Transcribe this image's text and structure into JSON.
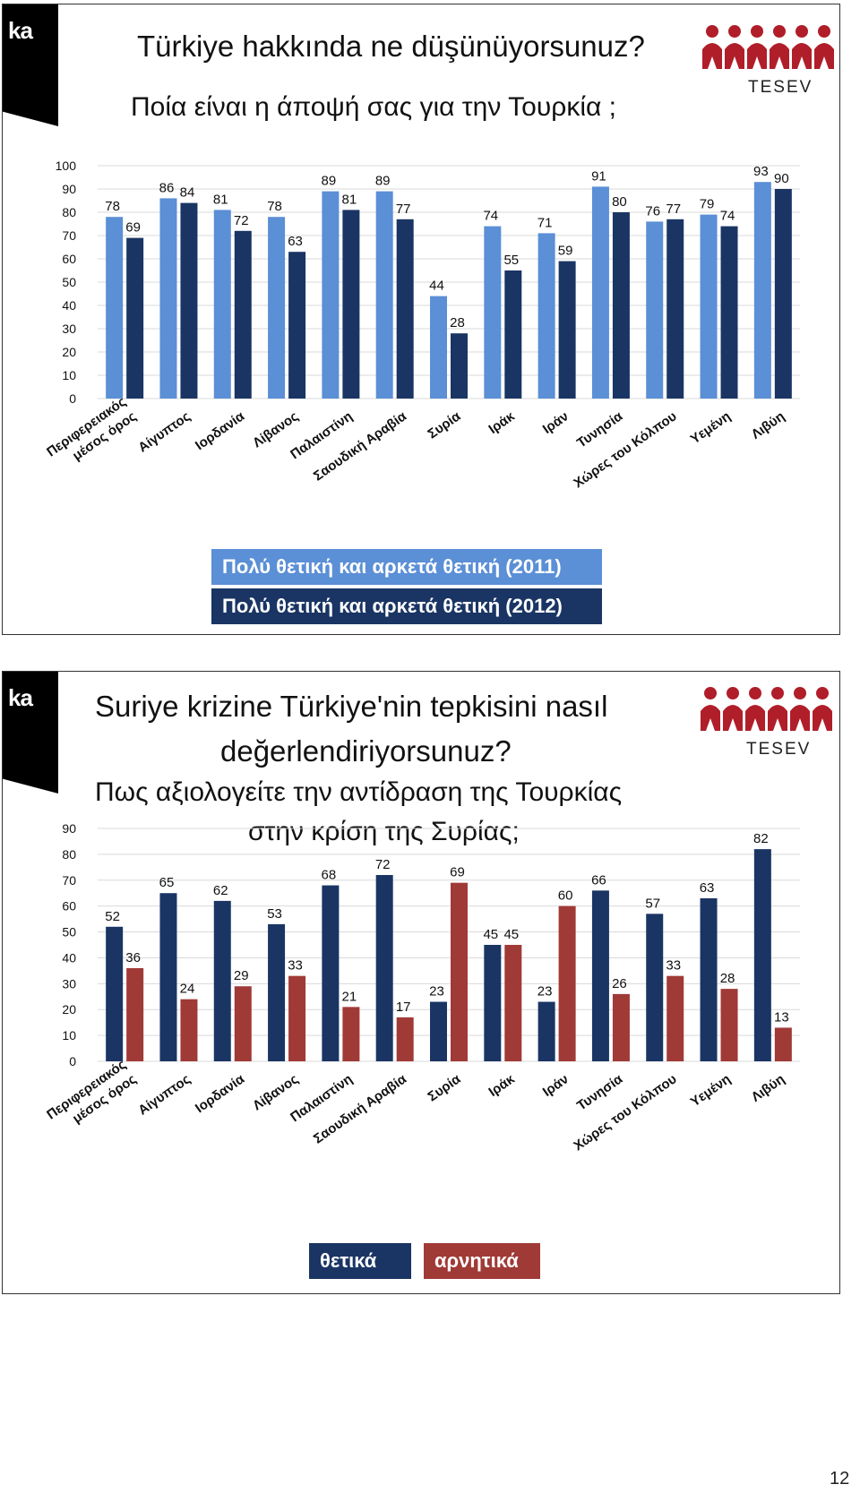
{
  "page_number": "12",
  "logo": {
    "text": "TESEV"
  },
  "tag": "ka",
  "colors": {
    "series_2011": "#5b8fd6",
    "series_2012": "#1a3564",
    "positive": "#1a3564",
    "negative": "#a03a36",
    "logo_red": "#b01e2a"
  },
  "slide1": {
    "title_tr": "Türkiye hakkında ne düşünüyorsunuz?",
    "title_gr": "Ποία είναι η άποψή σας για την Τουρκία ;"
  },
  "slide2": {
    "title_tr_line1": "Suriye krizine Türkiye'nin tepkisini nasıl",
    "title_tr_line2": "değerlendiriyorsunuz?",
    "title_gr_line1": "Πως αξιολογείτε την αντίδραση της Τουρκίας",
    "title_gr_line2": "στην κρίση της Συρίας;"
  },
  "chart_data": [
    {
      "type": "bar",
      "categories": [
        "Περιφερειακός μέσος όρος",
        "Αίγυπτος",
        "Ιορδανία",
        "Λίβανος",
        "Παλαιστίνη",
        "Σαουδική Αραβία",
        "Συρία",
        "Ιράκ",
        "Ιράν",
        "Τυνησία",
        "Χώρες του Κόλπου",
        "Υεμένη",
        "Λιβύη"
      ],
      "category_lines": [
        [
          "Περιφερειακός",
          "μέσος όρος"
        ],
        [
          "Αίγυπτος"
        ],
        [
          "Ιορδανία"
        ],
        [
          "Λίβανος"
        ],
        [
          "Παλαιστίνη"
        ],
        [
          "Σαουδική Αραβία"
        ],
        [
          "Συρία"
        ],
        [
          "Ιράκ"
        ],
        [
          "Ιράν"
        ],
        [
          "Τυνησία"
        ],
        [
          "Χώρες του Κόλπου"
        ],
        [
          "Υεμένη"
        ],
        [
          "Λιβύη"
        ]
      ],
      "series": [
        {
          "name": "Πολύ θετική και αρκετά θετική (2011)",
          "values": [
            78,
            86,
            81,
            78,
            89,
            89,
            44,
            74,
            71,
            91,
            76,
            79,
            93
          ]
        },
        {
          "name": "Πολύ θετική και αρκετά θετική (2012)",
          "values": [
            69,
            84,
            72,
            63,
            81,
            77,
            28,
            55,
            59,
            80,
            77,
            74,
            90
          ]
        }
      ],
      "ylim": [
        0,
        100
      ],
      "yticks": [
        0,
        10,
        20,
        30,
        40,
        50,
        60,
        70,
        80,
        90,
        100
      ],
      "grid": true,
      "legend": "bottom"
    },
    {
      "type": "bar",
      "categories": [
        "Περιφερειακός μέσος όρος",
        "Αίγυπτος",
        "Ιορδανία",
        "Λίβανος",
        "Παλαιστίνη",
        "Σαουδική Αραβία",
        "Συρία",
        "Ιράκ",
        "Ιράν",
        "Τυνησία",
        "Χώρες του Κόλπου",
        "Υεμένη",
        "Λιβύη"
      ],
      "category_lines": [
        [
          "Περιφερειακός",
          "μέσος όρος"
        ],
        [
          "Αίγυπτος"
        ],
        [
          "Ιορδανία"
        ],
        [
          "Λίβανος"
        ],
        [
          "Παλαιστίνη"
        ],
        [
          "Σαουδική Αραβία"
        ],
        [
          "Συρία"
        ],
        [
          "Ιράκ"
        ],
        [
          "Ιράν"
        ],
        [
          "Τυνησία"
        ],
        [
          "Χώρες του Κόλπου"
        ],
        [
          "Υεμένη"
        ],
        [
          "Λιβύη"
        ]
      ],
      "series": [
        {
          "name": "θετικά",
          "values": [
            52,
            65,
            62,
            53,
            68,
            72,
            23,
            45,
            23,
            66,
            57,
            63,
            82
          ]
        },
        {
          "name": "αρνητικά",
          "values": [
            36,
            24,
            29,
            33,
            21,
            17,
            69,
            45,
            60,
            26,
            33,
            28,
            13
          ]
        }
      ],
      "ylim": [
        0,
        90
      ],
      "yticks": [
        0,
        10,
        20,
        30,
        40,
        50,
        60,
        70,
        80,
        90
      ],
      "grid": true,
      "legend": "bottom"
    }
  ]
}
